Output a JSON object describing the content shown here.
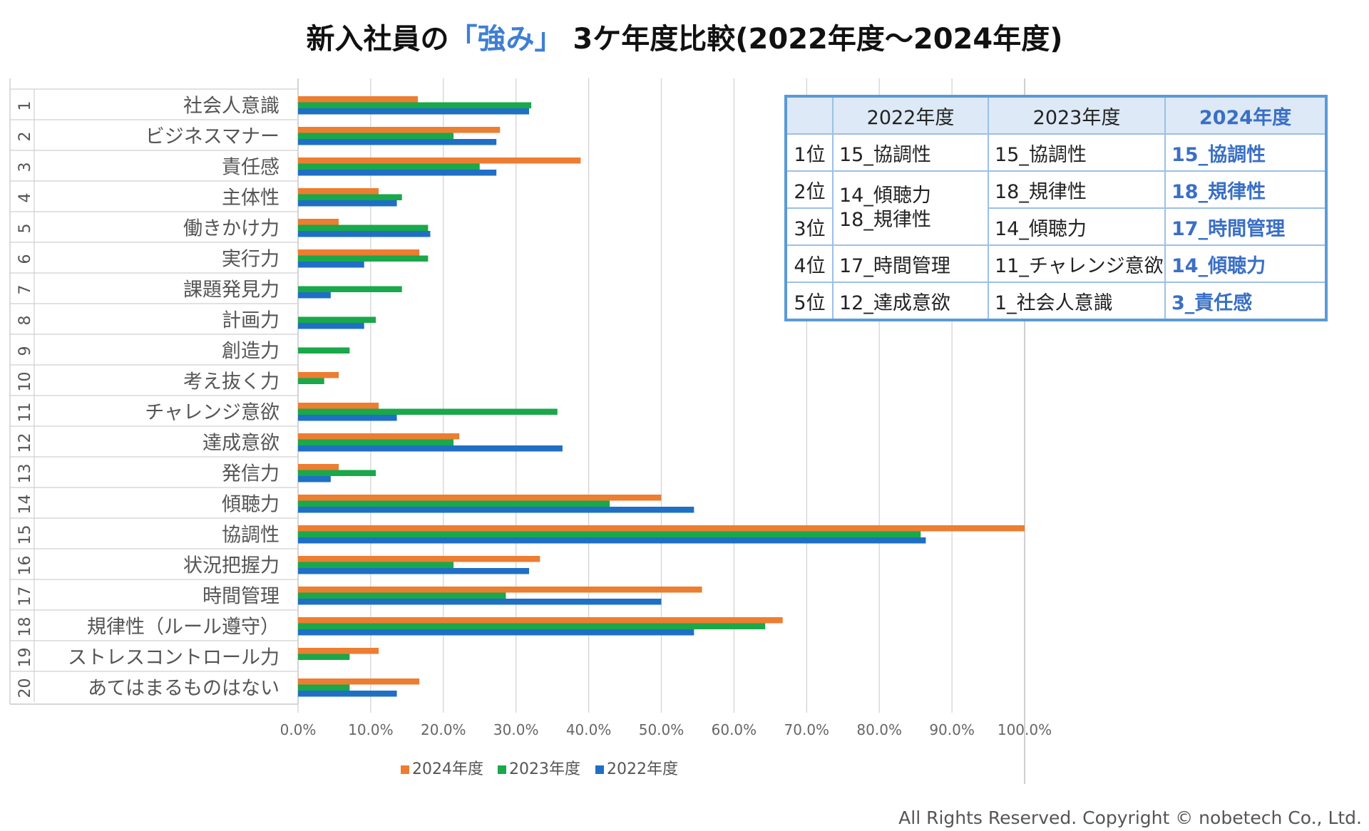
{
  "title": {
    "prefix": "新入社員の",
    "highlight": "「強み」",
    "suffix": " 3ケ年度比較(2022年度～2024年度)"
  },
  "chart_data": {
    "type": "bar",
    "orientation": "horizontal",
    "categories": [
      {
        "num": "1",
        "label": "社会人意識"
      },
      {
        "num": "2",
        "label": "ビジネスマナー"
      },
      {
        "num": "3",
        "label": "責任感"
      },
      {
        "num": "4",
        "label": "主体性"
      },
      {
        "num": "5",
        "label": "働きかけ力"
      },
      {
        "num": "6",
        "label": "実行力"
      },
      {
        "num": "7",
        "label": "課題発見力"
      },
      {
        "num": "8",
        "label": "計画力"
      },
      {
        "num": "9",
        "label": "創造力"
      },
      {
        "num": "10",
        "label": "考え抜く力"
      },
      {
        "num": "11",
        "label": "チャレンジ意欲"
      },
      {
        "num": "12",
        "label": "達成意欲"
      },
      {
        "num": "13",
        "label": "発信力"
      },
      {
        "num": "14",
        "label": "傾聴力"
      },
      {
        "num": "15",
        "label": "協調性"
      },
      {
        "num": "16",
        "label": "状況把握力"
      },
      {
        "num": "17",
        "label": "時間管理"
      },
      {
        "num": "18",
        "label": "規律性（ルール遵守）"
      },
      {
        "num": "19",
        "label": "ストレスコントロール力"
      },
      {
        "num": "20",
        "label": "あてはまるものはない"
      }
    ],
    "series": [
      {
        "name": "2024年度",
        "color": "#ed7d31",
        "values": [
          16.5,
          27.8,
          38.9,
          11.1,
          5.6,
          16.7,
          0,
          0,
          0,
          5.6,
          11.1,
          22.2,
          5.6,
          50.0,
          100.0,
          33.3,
          55.6,
          66.7,
          11.1,
          16.7
        ]
      },
      {
        "name": "2023年度",
        "color": "#19a84a",
        "values": [
          32.1,
          21.4,
          25.0,
          14.3,
          17.9,
          17.9,
          14.3,
          10.7,
          7.1,
          3.6,
          35.7,
          21.4,
          10.7,
          42.9,
          85.7,
          21.4,
          28.6,
          64.3,
          7.1,
          7.1
        ]
      },
      {
        "name": "2022年度",
        "color": "#1f6fc5",
        "values": [
          31.8,
          27.3,
          27.3,
          13.6,
          18.2,
          9.1,
          4.5,
          9.1,
          0,
          0,
          13.6,
          36.4,
          4.5,
          54.5,
          86.4,
          31.8,
          50.0,
          54.5,
          0,
          13.6
        ]
      }
    ],
    "x_ticks": [
      "0.0%",
      "10.0%",
      "20.0%",
      "30.0%",
      "40.0%",
      "50.0%",
      "60.0%",
      "70.0%",
      "80.0%",
      "90.0%",
      "100.0%"
    ],
    "xlim": [
      0,
      100
    ],
    "grid": true,
    "legend_position": "bottom"
  },
  "ranking_table": {
    "header": [
      "",
      "2022年度",
      "2023年度",
      "2024年度"
    ],
    "ranks": [
      "1位",
      "2位",
      "3位",
      "4位",
      "5位"
    ],
    "r1": [
      "15_協調性",
      "15_協調性",
      "15_協調性"
    ],
    "merged_2022": [
      "14_傾聴力",
      "18_規律性"
    ],
    "r2": [
      "18_規律性",
      "18_規律性"
    ],
    "r3": [
      "14_傾聴力",
      "17_時間管理"
    ],
    "r4": [
      "17_時間管理",
      "11_チャレンジ意欲",
      "14_傾聴力"
    ],
    "r5": [
      "12_達成意欲",
      "1_社会人意識",
      "3_責任感"
    ]
  },
  "copyright": "All Rights Reserved. Copyright © nobetech Co., Ltd."
}
